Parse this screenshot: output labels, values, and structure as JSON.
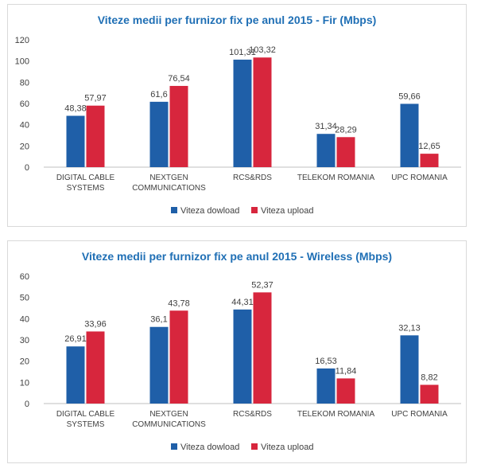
{
  "colors": {
    "download": "#1f5fa8",
    "upload": "#d7263d",
    "axis": "#bfbfbf",
    "title": "#1f6fb5"
  },
  "chart_data": [
    {
      "type": "bar",
      "title": "Viteze medii per furnizor fix pe anul 2015 - Fir (Mbps)",
      "categories": [
        [
          "DIGITAL CABLE",
          "SYSTEMS"
        ],
        [
          "NEXTGEN",
          "COMMUNICATIONS"
        ],
        [
          "RCS&RDS"
        ],
        [
          "TELEKOM ROMANIA"
        ],
        [
          "UPC ROMANIA"
        ]
      ],
      "series": [
        {
          "name": "Viteza dowload",
          "values": [
            48.38,
            61.6,
            101.31,
            31.34,
            59.66
          ],
          "labels": [
            "48,38",
            "61,6",
            "101,31",
            "31,34",
            "59,66"
          ]
        },
        {
          "name": "Viteza upload",
          "values": [
            57.97,
            76.54,
            103.32,
            28.29,
            12.65
          ],
          "labels": [
            "57,97",
            "76,54",
            "103,32",
            "28,29",
            "12,65"
          ]
        }
      ],
      "ylim": [
        0,
        120
      ],
      "yticks": [
        "0",
        "20",
        "40",
        "60",
        "80",
        "100",
        "120"
      ],
      "legend": "bottom"
    },
    {
      "type": "bar",
      "title": "Viteze medii per furnizor fix pe anul 2015 - Wireless (Mbps)",
      "categories": [
        [
          "DIGITAL CABLE",
          "SYSTEMS"
        ],
        [
          "NEXTGEN",
          "COMMUNICATIONS"
        ],
        [
          "RCS&RDS"
        ],
        [
          "TELEKOM ROMANIA"
        ],
        [
          "UPC ROMANIA"
        ]
      ],
      "series": [
        {
          "name": "Viteza dowload",
          "values": [
            26.91,
            36.1,
            44.31,
            16.53,
            32.13
          ],
          "labels": [
            "26,91",
            "36,1",
            "44,31",
            "16,53",
            "32,13"
          ]
        },
        {
          "name": "Viteza upload",
          "values": [
            33.96,
            43.78,
            52.37,
            11.84,
            8.82
          ],
          "labels": [
            "33,96",
            "43,78",
            "52,37",
            "11,84",
            "8,82"
          ]
        }
      ],
      "ylim": [
        0,
        60
      ],
      "yticks": [
        "0",
        "10",
        "20",
        "30",
        "40",
        "50",
        "60"
      ],
      "legend": "bottom"
    }
  ]
}
